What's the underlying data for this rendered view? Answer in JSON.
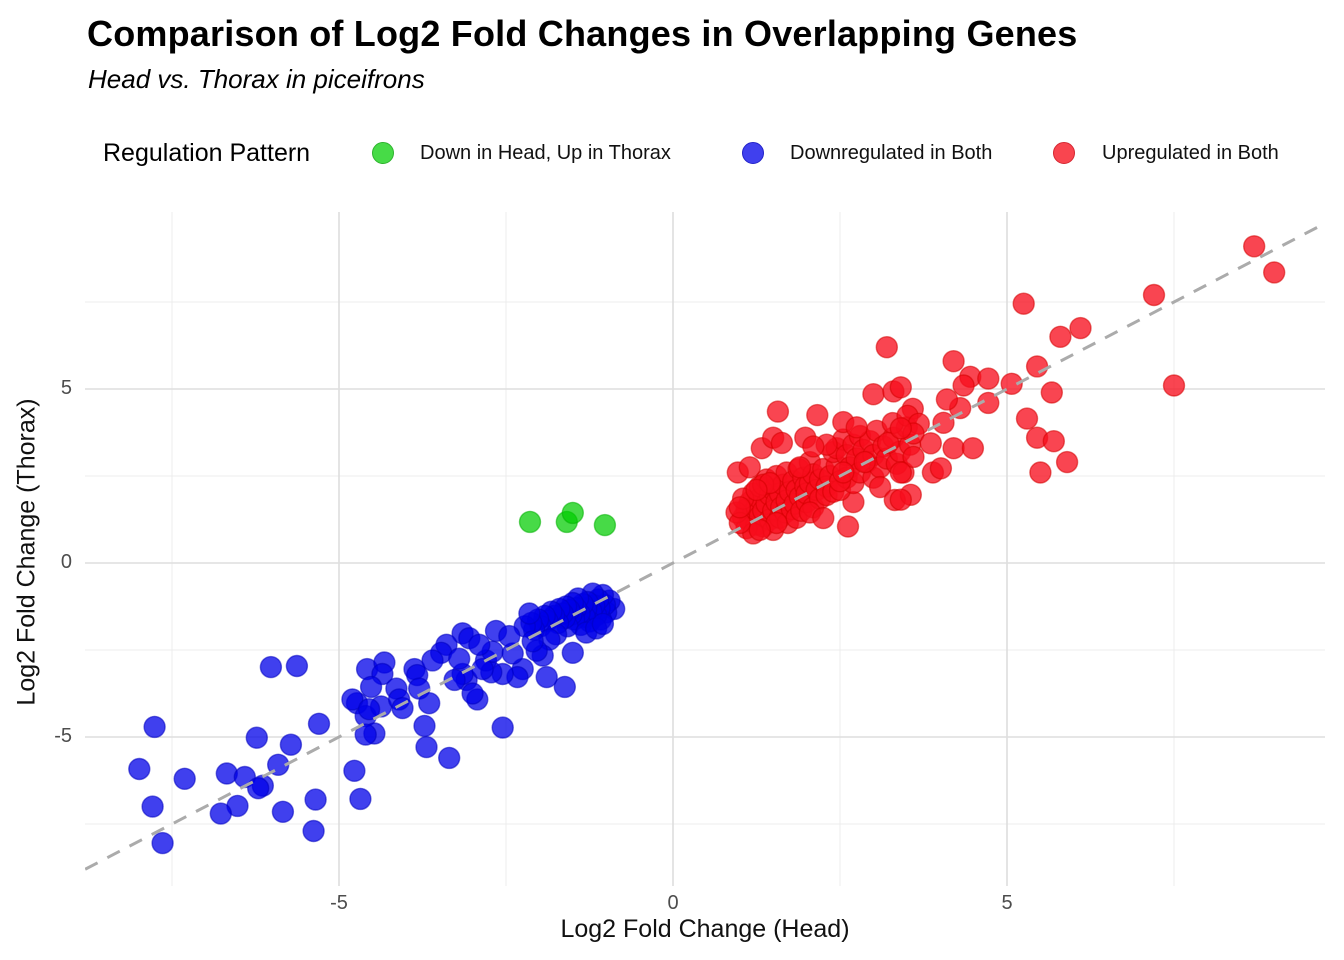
{
  "title": "Comparison of Log2 Fold Changes in Overlapping Genes",
  "subtitle": "Head vs. Thorax in piceifrons",
  "legend": {
    "title": "Regulation Pattern",
    "items": [
      {
        "label": "Down in Head, Up in Thorax",
        "color": "#47db47",
        "border": "#2db32d"
      },
      {
        "label": "Downregulated in Both",
        "color": "#4040ee",
        "border": "#2222c8"
      },
      {
        "label": "Upregulated in Both",
        "color": "#f9454f",
        "border": "#d42630"
      }
    ]
  },
  "chart_data": {
    "type": "scatter",
    "title": "Comparison of Log2 Fold Changes in Overlapping Genes",
    "subtitle": "Head vs. Thorax in piceifrons",
    "xlabel": "Log2 Fold Change (Head)",
    "ylabel": "Log2 Fold Change (Thorax)",
    "xlim": [
      -8.8,
      9.76
    ],
    "ylim": [
      -9.25,
      10.09
    ],
    "x_ticks": [
      -5,
      0,
      5
    ],
    "y_ticks": [
      -5,
      0,
      5
    ],
    "x_minor_ticks": [
      -7.5,
      -2.5,
      2.5,
      7.5
    ],
    "y_minor_ticks": [
      -7.5,
      -2.5,
      2.5,
      7.5
    ],
    "grid": true,
    "legend_position": "top",
    "identity_line": {
      "equation": "y = x",
      "style": "dashed",
      "color": "#ababab"
    },
    "major_grid_color": "#dedede",
    "minor_grid_color": "#ececec",
    "series": [
      {
        "name": "Down in Head, Up in Thorax",
        "fill": "#00cc00",
        "opacity": 0.72,
        "stroke": "#00b000",
        "points": [
          [
            -2.14,
            1.18
          ],
          [
            -1.59,
            1.18
          ],
          [
            -1.5,
            1.44
          ],
          [
            -1.02,
            1.09
          ]
        ]
      },
      {
        "name": "Downregulated in Both",
        "fill": "#0000e8",
        "opacity": 0.75,
        "stroke": "#0000c0",
        "points": [
          [
            -0.88,
            -1.32
          ],
          [
            -0.95,
            -1.08
          ],
          [
            -1.0,
            -1.42
          ],
          [
            -1.02,
            -1.2
          ],
          [
            -1.05,
            -0.92
          ],
          [
            -1.08,
            -1.62
          ],
          [
            -1.1,
            -1.3
          ],
          [
            -1.12,
            -1.05
          ],
          [
            -1.15,
            -1.5
          ],
          [
            -1.18,
            -1.22
          ],
          [
            -1.2,
            -0.88
          ],
          [
            -1.22,
            -1.4
          ],
          [
            -1.25,
            -1.68
          ],
          [
            -1.28,
            -1.12
          ],
          [
            -1.3,
            -1.32
          ],
          [
            -1.32,
            -1.55
          ],
          [
            -1.35,
            -1.18
          ],
          [
            -1.38,
            -1.78
          ],
          [
            -1.4,
            -1.45
          ],
          [
            -1.42,
            -1.02
          ],
          [
            -1.45,
            -1.3
          ],
          [
            -1.48,
            -1.62
          ],
          [
            -1.5,
            -1.15
          ],
          [
            -1.52,
            -1.48
          ],
          [
            -1.55,
            -1.35
          ],
          [
            -1.58,
            -1.82
          ],
          [
            -1.6,
            -1.25
          ],
          [
            -1.62,
            -1.58
          ],
          [
            -1.65,
            -1.45
          ],
          [
            -1.7,
            -1.32
          ],
          [
            -1.72,
            -1.72
          ],
          [
            -1.78,
            -1.52
          ],
          [
            -1.82,
            -1.4
          ],
          [
            -1.88,
            -1.66
          ],
          [
            -1.92,
            -1.52
          ],
          [
            -1.98,
            -1.82
          ],
          [
            -2.02,
            -1.62
          ],
          [
            -2.08,
            -1.92
          ],
          [
            -2.12,
            -1.72
          ],
          [
            -2.22,
            -1.82
          ],
          [
            -2.15,
            -1.45
          ],
          [
            -1.3,
            -2.0
          ],
          [
            -1.15,
            -1.88
          ],
          [
            -1.05,
            -1.75
          ],
          [
            -1.75,
            -2.05
          ],
          [
            -1.85,
            -2.2
          ],
          [
            -1.5,
            -2.58
          ],
          [
            -1.62,
            -3.56
          ],
          [
            -1.89,
            -3.28
          ],
          [
            -1.95,
            -2.66
          ],
          [
            -2.04,
            -2.52
          ],
          [
            -2.25,
            -3.05
          ],
          [
            -2.33,
            -3.28
          ],
          [
            -2.55,
            -3.19
          ],
          [
            -2.72,
            -3.14
          ],
          [
            -2.93,
            -3.92
          ],
          [
            -3.09,
            -3.36
          ],
          [
            -3.15,
            -2.02
          ],
          [
            -3.05,
            -2.16
          ],
          [
            -3.15,
            -3.19
          ],
          [
            -3.27,
            -3.36
          ],
          [
            -3.39,
            -2.35
          ],
          [
            -3.47,
            -2.58
          ],
          [
            -3.0,
            -3.75
          ],
          [
            -2.8,
            -2.8
          ],
          [
            -2.7,
            -2.55
          ],
          [
            -2.9,
            -2.35
          ],
          [
            -3.2,
            -2.75
          ],
          [
            -2.1,
            -2.25
          ],
          [
            -2.4,
            -2.6
          ],
          [
            -2.65,
            -1.95
          ],
          [
            -2.85,
            -3.05
          ],
          [
            -2.45,
            -2.1
          ],
          [
            -2.55,
            -4.73
          ],
          [
            -4.58,
            -3.05
          ],
          [
            -4.32,
            -2.86
          ],
          [
            -4.35,
            -3.19
          ],
          [
            -4.52,
            -3.56
          ],
          [
            -4.73,
            -4.03
          ],
          [
            -4.6,
            -4.4
          ],
          [
            -4.37,
            -4.12
          ],
          [
            -4.47,
            -4.9
          ],
          [
            -4.14,
            -3.61
          ],
          [
            -4.1,
            -3.92
          ],
          [
            -3.87,
            -3.05
          ],
          [
            -3.83,
            -3.22
          ],
          [
            -4.05,
            -4.17
          ],
          [
            -3.8,
            -3.61
          ],
          [
            -3.65,
            -4.03
          ],
          [
            -3.72,
            -4.68
          ],
          [
            -3.69,
            -5.29
          ],
          [
            -3.35,
            -5.6
          ],
          [
            -3.6,
            -2.8
          ],
          [
            -4.8,
            -3.92
          ],
          [
            -4.55,
            -4.2
          ],
          [
            -4.6,
            -4.93
          ],
          [
            -5.63,
            -2.96
          ],
          [
            -6.02,
            -2.99
          ],
          [
            -5.3,
            -4.62
          ],
          [
            -7.76,
            -4.71
          ],
          [
            -6.23,
            -5.02
          ],
          [
            -5.72,
            -5.22
          ],
          [
            -7.99,
            -5.92
          ],
          [
            -7.31,
            -6.2
          ],
          [
            -6.68,
            -6.05
          ],
          [
            -6.41,
            -6.15
          ],
          [
            -6.14,
            -6.4
          ],
          [
            -5.91,
            -5.8
          ],
          [
            -4.77,
            -5.97
          ],
          [
            -7.79,
            -7.0
          ],
          [
            -6.52,
            -6.98
          ],
          [
            -6.77,
            -7.2
          ],
          [
            -5.84,
            -7.15
          ],
          [
            -5.35,
            -6.8
          ],
          [
            -4.68,
            -6.78
          ],
          [
            -5.38,
            -7.7
          ],
          [
            -7.64,
            -8.05
          ],
          [
            -6.21,
            -6.47
          ]
        ]
      },
      {
        "name": "Upregulated in Both",
        "fill": "#f70d1c",
        "opacity": 0.77,
        "stroke": "#d40000",
        "points": [
          [
            1.05,
            1.3
          ],
          [
            1.1,
            1.55
          ],
          [
            1.15,
            1.2
          ],
          [
            1.15,
            1.75
          ],
          [
            1.2,
            1.45
          ],
          [
            1.2,
            2.0
          ],
          [
            1.25,
            1.1
          ],
          [
            1.25,
            1.6
          ],
          [
            1.3,
            1.35
          ],
          [
            1.3,
            1.85
          ],
          [
            1.3,
            2.2
          ],
          [
            1.35,
            1.5
          ],
          [
            1.35,
            1.05
          ],
          [
            1.4,
            1.7
          ],
          [
            1.4,
            2.4
          ],
          [
            1.45,
            1.25
          ],
          [
            1.45,
            1.95
          ],
          [
            1.5,
            1.5
          ],
          [
            1.5,
            2.1
          ],
          [
            1.5,
            0.95
          ],
          [
            1.55,
            1.75
          ],
          [
            1.55,
            2.5
          ],
          [
            1.6,
            1.3
          ],
          [
            1.6,
            2.0
          ],
          [
            1.62,
            1.6
          ],
          [
            1.65,
            2.25
          ],
          [
            1.68,
            1.45
          ],
          [
            1.7,
            1.8
          ],
          [
            1.7,
            2.6
          ],
          [
            1.72,
            1.15
          ],
          [
            1.75,
            2.05
          ],
          [
            1.78,
            1.55
          ],
          [
            1.8,
            2.35
          ],
          [
            1.82,
            1.7
          ],
          [
            1.85,
            1.3
          ],
          [
            1.85,
            2.1
          ],
          [
            1.88,
            2.7
          ],
          [
            1.9,
            1.9
          ],
          [
            1.92,
            1.5
          ],
          [
            1.95,
            2.45
          ],
          [
            1.98,
            2.2
          ],
          [
            2.0,
            1.75
          ],
          [
            2.0,
            2.0
          ],
          [
            2.05,
            2.9
          ],
          [
            2.05,
            2.3
          ],
          [
            2.1,
            1.6
          ],
          [
            2.1,
            2.55
          ],
          [
            2.15,
            2.1
          ],
          [
            2.2,
            1.85
          ],
          [
            2.2,
            2.4
          ],
          [
            2.25,
            2.7
          ],
          [
            2.3,
            2.2
          ],
          [
            2.3,
            1.95
          ],
          [
            2.35,
            2.5
          ],
          [
            2.4,
            2.05
          ],
          [
            2.45,
            2.8
          ],
          [
            1.1,
            1.0
          ],
          [
            1.2,
            0.85
          ],
          [
            1.35,
            2.25
          ],
          [
            0.95,
            1.45
          ],
          [
            1.0,
            1.15
          ],
          [
            1.05,
            1.85
          ],
          [
            1.45,
            2.3
          ],
          [
            1.55,
            1.15
          ],
          [
            1.9,
            2.75
          ],
          [
            2.05,
            1.45
          ],
          [
            1.0,
            1.6
          ],
          [
            1.25,
            2.1
          ],
          [
            1.3,
            0.95
          ],
          [
            0.97,
            2.6
          ],
          [
            1.15,
            2.75
          ],
          [
            1.33,
            3.3
          ],
          [
            1.5,
            3.6
          ],
          [
            1.63,
            3.45
          ],
          [
            1.57,
            4.35
          ],
          [
            1.98,
            3.6
          ],
          [
            2.16,
            4.25
          ],
          [
            2.4,
            3.19
          ],
          [
            2.62,
            1.05
          ],
          [
            2.25,
            1.29
          ],
          [
            2.7,
            1.75
          ],
          [
            2.45,
            3.3
          ],
          [
            2.5,
            2.1
          ],
          [
            2.55,
            3.55
          ],
          [
            2.6,
            2.45
          ],
          [
            2.6,
            3.1
          ],
          [
            2.65,
            2.75
          ],
          [
            2.7,
            3.4
          ],
          [
            2.7,
            2.3
          ],
          [
            2.75,
            3.0
          ],
          [
            2.8,
            3.65
          ],
          [
            2.8,
            2.6
          ],
          [
            2.85,
            3.25
          ],
          [
            2.9,
            2.9
          ],
          [
            2.95,
            3.5
          ],
          [
            3.0,
            3.1
          ],
          [
            3.0,
            2.45
          ],
          [
            3.05,
            3.8
          ],
          [
            3.1,
            2.75
          ],
          [
            3.15,
            3.35
          ],
          [
            3.2,
            3.0
          ],
          [
            3.3,
            3.6
          ],
          [
            3.35,
            2.85
          ],
          [
            3.4,
            3.2
          ],
          [
            3.5,
            3.9
          ],
          [
            3.55,
            3.4
          ],
          [
            3.45,
            2.6
          ],
          [
            3.6,
            3.05
          ],
          [
            2.5,
            2.35
          ],
          [
            2.55,
            2.6
          ],
          [
            2.3,
            3.4
          ],
          [
            2.1,
            3.35
          ],
          [
            2.55,
            4.05
          ],
          [
            2.75,
            3.9
          ],
          [
            3.29,
            4.02
          ],
          [
            3.22,
            3.45
          ],
          [
            2.87,
            2.9
          ],
          [
            3.1,
            2.18
          ],
          [
            3.32,
            1.81
          ],
          [
            3.2,
            6.2
          ],
          [
            3.0,
            4.85
          ],
          [
            3.3,
            4.93
          ],
          [
            3.41,
            5.05
          ],
          [
            3.59,
            4.43
          ],
          [
            3.51,
            4.23
          ],
          [
            3.68,
            4.0
          ],
          [
            3.6,
            3.72
          ],
          [
            3.86,
            3.44
          ],
          [
            4.05,
            4.03
          ],
          [
            4.2,
            3.3
          ],
          [
            4.49,
            3.3
          ],
          [
            3.89,
            2.6
          ],
          [
            4.01,
            2.72
          ],
          [
            3.56,
            1.96
          ],
          [
            3.41,
            1.82
          ],
          [
            3.41,
            2.6
          ],
          [
            3.41,
            3.87
          ],
          [
            4.3,
            4.45
          ],
          [
            4.1,
            4.7
          ],
          [
            4.45,
            5.35
          ],
          [
            4.2,
            5.8
          ],
          [
            4.35,
            5.1
          ],
          [
            4.72,
            5.3
          ],
          [
            5.07,
            5.15
          ],
          [
            5.45,
            5.65
          ],
          [
            5.67,
            4.9
          ],
          [
            4.72,
            4.6
          ],
          [
            5.3,
            4.15
          ],
          [
            5.45,
            3.6
          ],
          [
            5.7,
            3.5
          ],
          [
            5.9,
            2.9
          ],
          [
            5.5,
            2.6
          ],
          [
            7.5,
            5.1
          ],
          [
            5.25,
            7.45
          ],
          [
            5.8,
            6.5
          ],
          [
            6.1,
            6.75
          ],
          [
            7.2,
            7.7
          ],
          [
            8.7,
            9.1
          ],
          [
            9.0,
            8.35
          ]
        ]
      }
    ]
  }
}
